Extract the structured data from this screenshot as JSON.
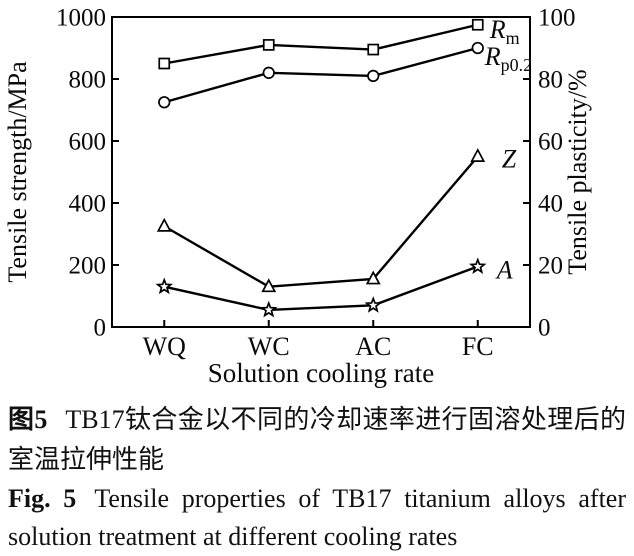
{
  "figure": {
    "caption_zh_label": "图5",
    "caption_zh_text": "TB17钛合金以不同的冷却速率进行固溶处理后的室温拉伸性能",
    "caption_en_label": "Fig. 5",
    "caption_en_text": "Tensile properties of TB17 titanium alloys after solution treatment at different cooling rates"
  },
  "chart_data": {
    "type": "line",
    "title": "",
    "categories": [
      "WQ",
      "WC",
      "AC",
      "FC"
    ],
    "xlabel": "Solution cooling rate",
    "ylabel_left": "Tensile strength/MPa",
    "ylabel_right": "Tensile plasticity/%",
    "ylim_left": [
      0,
      1000
    ],
    "ylim_right": [
      0,
      100
    ],
    "yticks_left": [
      0,
      200,
      400,
      600,
      800,
      1000
    ],
    "yticks_right": [
      0,
      20,
      40,
      60,
      80,
      100
    ],
    "grid": false,
    "legend_position": "labels at line ends",
    "line_color": "#000000",
    "marker_fill": "#ffffff",
    "background": "#ffffff",
    "series": [
      {
        "name": "Rm",
        "label_main": "R",
        "label_sub": "m",
        "axis": "left",
        "unit": "MPa",
        "marker": "square",
        "values": [
          850,
          910,
          895,
          975
        ]
      },
      {
        "name": "Rp0.2",
        "label_main": "R",
        "label_sub": "p0.2",
        "axis": "left",
        "unit": "MPa",
        "marker": "circle",
        "values": [
          725,
          820,
          810,
          900
        ]
      },
      {
        "name": "Z",
        "label_main": "Z",
        "label_sub": "",
        "axis": "right",
        "unit": "%",
        "marker": "triangle",
        "values": [
          32.5,
          13,
          15.5,
          55
        ]
      },
      {
        "name": "A",
        "label_main": "A",
        "label_sub": "",
        "axis": "right",
        "unit": "%",
        "marker": "star",
        "values": [
          13,
          5.5,
          7,
          19.5
        ]
      }
    ]
  }
}
